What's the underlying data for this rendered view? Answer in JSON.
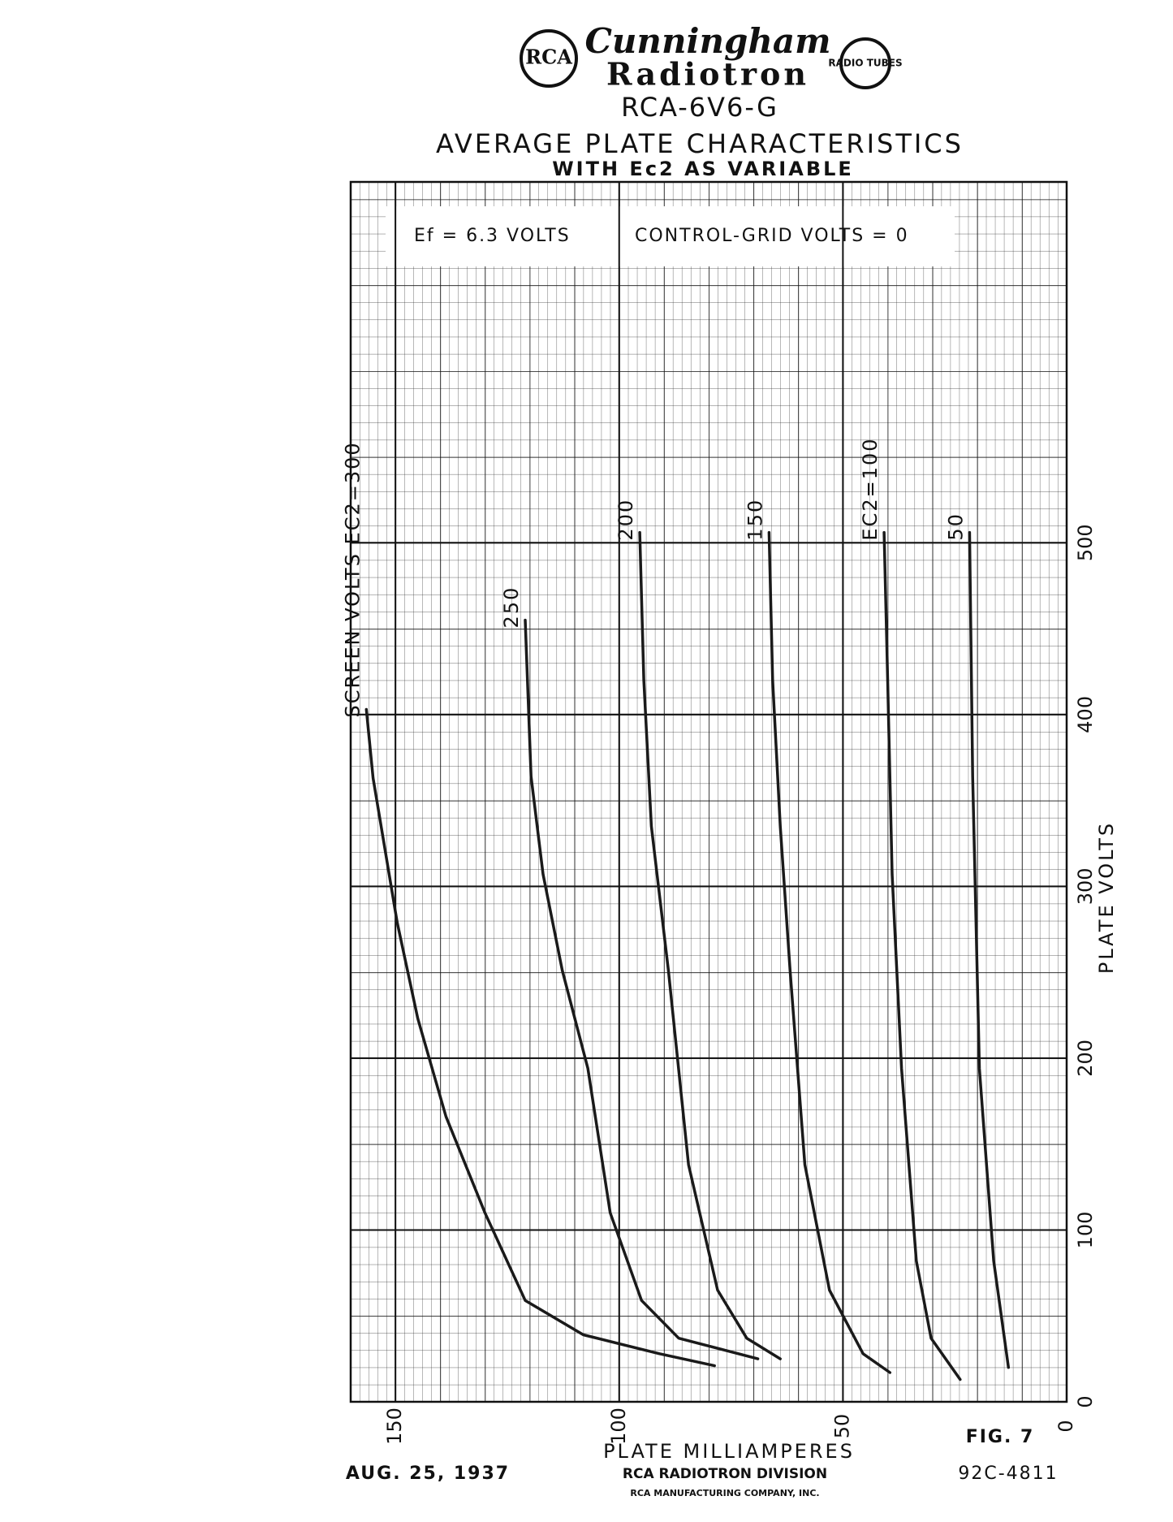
{
  "header": {
    "brand": "Cunningham",
    "brand2": "Radiotron",
    "logo_left": "RCA",
    "logo_right": "RADIO TUBES",
    "tube": "RCA-6V6-G"
  },
  "chart_data": {
    "type": "line",
    "title": "AVERAGE PLATE CHARACTERISTICS",
    "subtitle": "WITH Ec2 AS VARIABLE",
    "notes": [
      "Ef = 6.3 VOLTS",
      "CONTROL-GRID VOLTS = 0"
    ],
    "x_label": "PLATE MILLIAMPERES",
    "y_label": "PLATE VOLTS",
    "xlim": [
      0,
      160
    ],
    "x_reversed": true,
    "ylim": [
      0,
      710
    ],
    "xticks": [
      0,
      50,
      100,
      150
    ],
    "yticks": [
      0,
      100,
      200,
      300,
      400,
      500
    ],
    "grid": true,
    "color": "#1a1a1a",
    "series": [
      {
        "name": "SCREEN VOLTS EC2=300",
        "x": [
          156.5,
          155,
          149.6,
          145,
          138.7,
          130,
          121,
          108,
          91,
          78.7
        ],
        "values": [
          403,
          363,
          279,
          223,
          166,
          110,
          59,
          39,
          28,
          21
        ]
      },
      {
        "name": "250",
        "x": [
          121,
          119.7,
          117,
          112.7,
          107,
          102,
          95,
          86.7,
          69
        ],
        "values": [
          455,
          364,
          307,
          251,
          194,
          110,
          59,
          37,
          25
        ]
      },
      {
        "name": "200",
        "x": [
          95.4,
          94.5,
          92.8,
          89,
          84.5,
          78,
          71.5,
          64
        ],
        "values": [
          506,
          420,
          335,
          251,
          138,
          65,
          37,
          25
        ]
      },
      {
        "name": "150",
        "x": [
          66.5,
          65.7,
          64,
          61.8,
          58.5,
          53,
          45.5,
          39.5
        ],
        "values": [
          506,
          420,
          335,
          251,
          138,
          65,
          28,
          17
        ]
      },
      {
        "name": "EC2=100",
        "x": [
          40.8,
          40,
          39,
          36.9,
          33.6,
          30.3,
          23.8
        ],
        "values": [
          506,
          420,
          307,
          194,
          82,
          37,
          13
        ]
      },
      {
        "name": "50",
        "x": [
          21.7,
          21,
          19.5,
          16.3,
          13
        ],
        "values": [
          506,
          364,
          194,
          82,
          20
        ]
      }
    ]
  },
  "footer": {
    "fig": "FIG. 7",
    "date": "AUG. 25, 1937",
    "division": "RCA RADIOTRON DIVISION",
    "company": "RCA MANUFACTURING COMPANY, INC.",
    "code": "92C-4811"
  }
}
